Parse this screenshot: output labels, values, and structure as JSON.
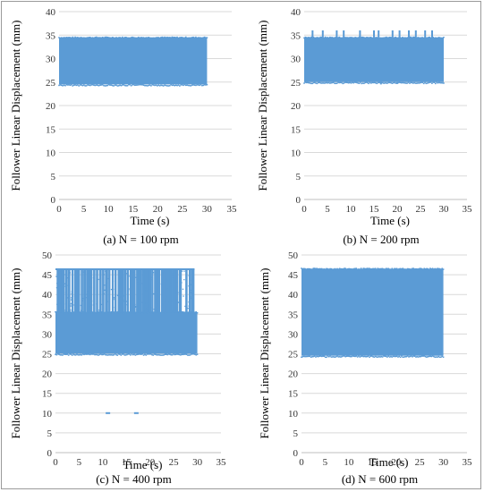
{
  "chart_data": [
    {
      "type": "scatter",
      "caption": "(a) N = 100 rpm",
      "xlabel": "Time (s)",
      "ylabel": "Follower Linear Displacement (mm)",
      "xlim": [
        0,
        35
      ],
      "ylim": [
        0,
        40
      ],
      "xticks": [
        0,
        5,
        10,
        15,
        20,
        25,
        30,
        35
      ],
      "yticks": [
        0,
        5,
        10,
        15,
        20,
        25,
        30,
        35,
        40
      ],
      "color": "#5b9bd5",
      "series": [
        {
          "values": {
            "time_range": [
              0,
              30
            ],
            "band": [
              24.5,
              34.5
            ],
            "peaks": [],
            "dips": []
          }
        }
      ]
    },
    {
      "type": "scatter",
      "caption": "(b) N = 200 rpm",
      "xlabel": "Time (s)",
      "ylabel": "Follower Linear Displacement (mm)",
      "xlim": [
        0,
        35
      ],
      "ylim": [
        0,
        40
      ],
      "xticks": [
        0,
        5,
        10,
        15,
        20,
        25,
        30,
        35
      ],
      "yticks": [
        0,
        5,
        10,
        15,
        20,
        25,
        30,
        35,
        40
      ],
      "color": "#5b9bd5",
      "series": [
        {
          "values": {
            "time_range": [
              0,
              30
            ],
            "band": [
              25,
              34.5
            ],
            "peaks": [
              [
                1.8,
                36
              ],
              [
                4,
                36
              ],
              [
                7,
                36
              ],
              [
                8.5,
                36
              ],
              [
                12,
                36
              ],
              [
                15,
                36
              ],
              [
                16,
                36
              ],
              [
                19,
                36
              ],
              [
                20.5,
                36
              ],
              [
                22.5,
                36
              ],
              [
                24,
                36
              ],
              [
                26,
                36
              ],
              [
                27.5,
                36
              ]
            ],
            "dips": [
              [
                16.5,
                24.5
              ],
              [
                20,
                24.6
              ]
            ]
          }
        }
      ]
    },
    {
      "type": "scatter",
      "caption": "(c) N = 400 rpm",
      "xlabel": "Time (s)",
      "ylabel": "Follower Linear Displacement (mm)",
      "xlim": [
        0,
        35
      ],
      "ylim": [
        0,
        50
      ],
      "xticks": [
        0,
        5,
        10,
        15,
        20,
        25,
        30,
        35
      ],
      "yticks": [
        0,
        5,
        10,
        15,
        20,
        25,
        30,
        35,
        40,
        45,
        50
      ],
      "color": "#5b9bd5",
      "series": [
        {
          "values": {
            "time_range": [
              0,
              30
            ],
            "band": [
              25,
              35.5
            ],
            "spike_top": 46.5,
            "spike_times": [
              0.5,
              1,
              1.6,
              2.3,
              2.9,
              3.6,
              4.3,
              4.9,
              5.6,
              6.2,
              6.9,
              7.5,
              8.2,
              8.8,
              9.5,
              10.1,
              10.8,
              11.4,
              12.1,
              12.7,
              13.4,
              14,
              14.7,
              15.3,
              16,
              16.6,
              17.3,
              17.9,
              18.6,
              19.2,
              19.9,
              20.5,
              21.2,
              21.8,
              22.5,
              23.1,
              23.8,
              24.4,
              25.1,
              25.7,
              26.4,
              27.7,
              28.4,
              29
            ],
            "outliers": [
              [
                11,
                10
              ],
              [
                17,
                10
              ]
            ]
          }
        }
      ]
    },
    {
      "type": "scatter",
      "caption": "(d) N = 600 rpm",
      "xlabel": "Time (s)",
      "ylabel": "Follower Linear Displacement (mm)",
      "xlim": [
        0,
        35
      ],
      "ylim": [
        0,
        50
      ],
      "xticks": [
        0,
        5,
        10,
        15,
        20,
        25,
        30,
        35
      ],
      "yticks": [
        0,
        5,
        10,
        15,
        20,
        25,
        30,
        35,
        40,
        45,
        50
      ],
      "color": "#5b9bd5",
      "series": [
        {
          "values": {
            "time_range": [
              0,
              30
            ],
            "band": [
              24.5,
              46.5
            ],
            "peaks": [],
            "dips": []
          }
        }
      ]
    }
  ]
}
